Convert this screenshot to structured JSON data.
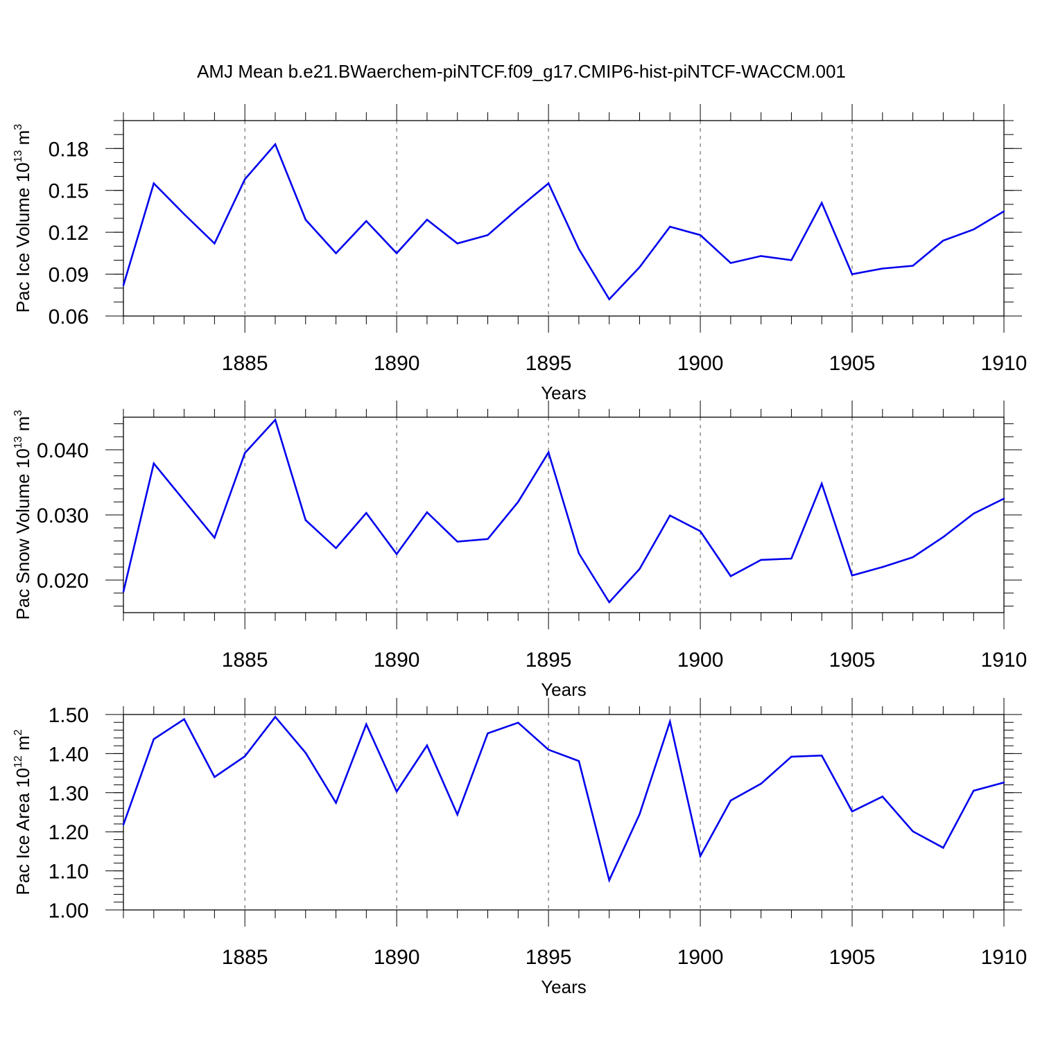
{
  "title": "AMJ Mean b.e21.BWaerchem-piNTCF.f09_g17.CMIP6-hist-piNTCF-WACCM.001",
  "colors": {
    "line": "#0000ee",
    "axis": "#000000",
    "grid": "#555555"
  },
  "chart_data": [
    {
      "type": "line",
      "ylabel": {
        "main": "Pac Ice Volume 10",
        "sup": "13",
        "unit": " m",
        "unit_sup": "3"
      },
      "xlabel": "Years",
      "xlim": [
        1881,
        1910
      ],
      "ylim": [
        0.06,
        0.2
      ],
      "xticks": [
        1885,
        1890,
        1895,
        1900,
        1905,
        1910
      ],
      "xtick_labels": [
        "1885",
        "1890",
        "1895",
        "1900",
        "1905",
        "1910"
      ],
      "yticks": [
        0.06,
        0.09,
        0.12,
        0.15,
        0.18
      ],
      "ytick_labels": [
        "0.06",
        "0.09",
        "0.12",
        "0.15",
        "0.18"
      ],
      "grid": "vertical dashed at major x ticks",
      "x": [
        1881,
        1882,
        1883,
        1884,
        1885,
        1886,
        1887,
        1888,
        1889,
        1890,
        1891,
        1892,
        1893,
        1894,
        1895,
        1896,
        1897,
        1898,
        1899,
        1900,
        1901,
        1902,
        1903,
        1904,
        1905,
        1906,
        1907,
        1908,
        1909,
        1910
      ],
      "y": [
        0.082,
        0.155,
        0.133,
        0.112,
        0.158,
        0.183,
        0.129,
        0.105,
        0.128,
        0.105,
        0.129,
        0.112,
        0.118,
        0.137,
        0.155,
        0.108,
        0.072,
        0.095,
        0.124,
        0.118,
        0.098,
        0.103,
        0.1,
        0.141,
        0.09,
        0.094,
        0.096,
        0.114,
        0.122,
        0.135
      ]
    },
    {
      "type": "line",
      "ylabel": {
        "main": "Pac Snow Volume 10",
        "sup": "13",
        "unit": " m",
        "unit_sup": "3"
      },
      "xlabel": "Years",
      "xlim": [
        1881,
        1910
      ],
      "ylim": [
        0.015,
        0.045
      ],
      "xticks": [
        1885,
        1890,
        1895,
        1900,
        1905,
        1910
      ],
      "xtick_labels": [
        "1885",
        "1890",
        "1895",
        "1900",
        "1905",
        "1910"
      ],
      "yticks": [
        0.02,
        0.03,
        0.04
      ],
      "ytick_labels": [
        "0.020",
        "0.030",
        "0.040"
      ],
      "grid": "vertical dashed at major x ticks",
      "x": [
        1881,
        1882,
        1883,
        1884,
        1885,
        1886,
        1887,
        1888,
        1889,
        1890,
        1891,
        1892,
        1893,
        1894,
        1895,
        1896,
        1897,
        1898,
        1899,
        1900,
        1901,
        1902,
        1903,
        1904,
        1905,
        1906,
        1907,
        1908,
        1909,
        1910
      ],
      "y": [
        0.0182,
        0.0379,
        0.0322,
        0.0265,
        0.0395,
        0.0446,
        0.0292,
        0.0249,
        0.0303,
        0.024,
        0.0304,
        0.0259,
        0.0263,
        0.032,
        0.0396,
        0.0241,
        0.0166,
        0.0217,
        0.0299,
        0.0275,
        0.0206,
        0.0231,
        0.0233,
        0.0348,
        0.0207,
        0.022,
        0.0235,
        0.0266,
        0.0302,
        0.0325
      ]
    },
    {
      "type": "line",
      "ylabel": {
        "main": "Pac Ice Area 10",
        "sup": "12",
        "unit": " m",
        "unit_sup": "2"
      },
      "xlabel": "Years",
      "xlim": [
        1881,
        1910
      ],
      "ylim": [
        1.0,
        1.5
      ],
      "xticks": [
        1885,
        1890,
        1895,
        1900,
        1905,
        1910
      ],
      "xtick_labels": [
        "1885",
        "1890",
        "1895",
        "1900",
        "1905",
        "1910"
      ],
      "yticks": [
        1.0,
        1.1,
        1.2,
        1.3,
        1.4,
        1.5
      ],
      "ytick_labels": [
        "1.00",
        "1.10",
        "1.20",
        "1.30",
        "1.40",
        "1.50"
      ],
      "grid": "vertical dashed at major x ticks",
      "x": [
        1881,
        1882,
        1883,
        1884,
        1885,
        1886,
        1887,
        1888,
        1889,
        1890,
        1891,
        1892,
        1893,
        1894,
        1895,
        1896,
        1897,
        1898,
        1899,
        1900,
        1901,
        1902,
        1903,
        1904,
        1905,
        1906,
        1907,
        1908,
        1909,
        1910
      ],
      "y": [
        1.218,
        1.437,
        1.488,
        1.34,
        1.393,
        1.494,
        1.402,
        1.274,
        1.475,
        1.303,
        1.421,
        1.244,
        1.452,
        1.479,
        1.41,
        1.381,
        1.076,
        1.245,
        1.482,
        1.138,
        1.28,
        1.323,
        1.392,
        1.395,
        1.252,
        1.29,
        1.201,
        1.159,
        1.305,
        1.326
      ]
    }
  ]
}
